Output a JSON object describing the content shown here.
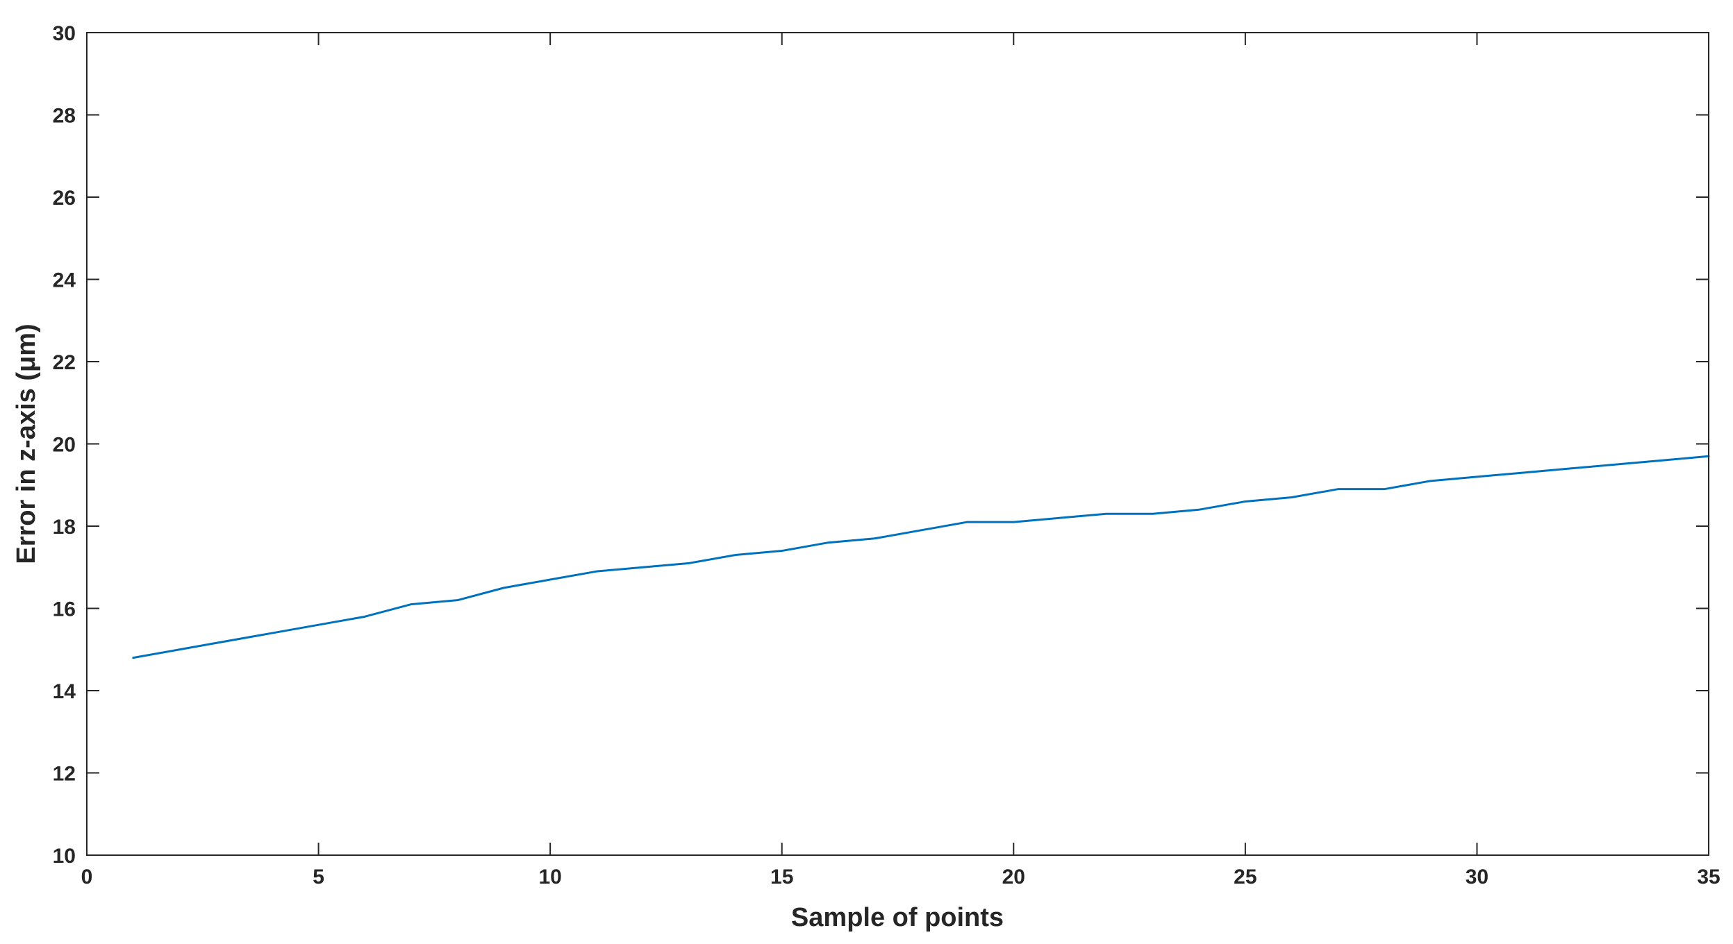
{
  "chart_data": {
    "type": "line",
    "title": "",
    "xlabel": "Sample of points",
    "ylabel": "Error in z-axis (μm)",
    "xlim": [
      0,
      35
    ],
    "ylim": [
      10,
      30
    ],
    "xticks": [
      0,
      5,
      10,
      15,
      20,
      25,
      30,
      35
    ],
    "yticks": [
      10,
      12,
      14,
      16,
      18,
      20,
      22,
      24,
      26,
      28,
      30
    ],
    "xtick_labels": [
      "0",
      "5",
      "10",
      "15",
      "20",
      "25",
      "30",
      "35"
    ],
    "ytick_labels": [
      "10",
      "12",
      "14",
      "16",
      "18",
      "20",
      "22",
      "24",
      "26",
      "28",
      "30"
    ],
    "grid": false,
    "box": true,
    "series": [
      {
        "color": "#0072BD",
        "x": [
          1,
          2,
          3,
          4,
          5,
          6,
          7,
          8,
          9,
          10,
          11,
          12,
          13,
          14,
          15,
          16,
          17,
          18,
          19,
          20,
          21,
          22,
          23,
          24,
          25,
          26,
          27,
          28,
          29,
          30,
          31,
          32,
          33,
          34,
          35
        ],
        "y": [
          14.8,
          15.0,
          15.2,
          15.4,
          15.6,
          15.8,
          16.1,
          16.2,
          16.5,
          16.7,
          16.9,
          17.0,
          17.1,
          17.3,
          17.4,
          17.6,
          17.7,
          17.9,
          18.1,
          18.1,
          18.2,
          18.3,
          18.3,
          18.4,
          18.6,
          18.7,
          18.9,
          18.9,
          19.1,
          19.2,
          19.3,
          19.4,
          19.5,
          19.6,
          19.7
        ]
      }
    ]
  }
}
